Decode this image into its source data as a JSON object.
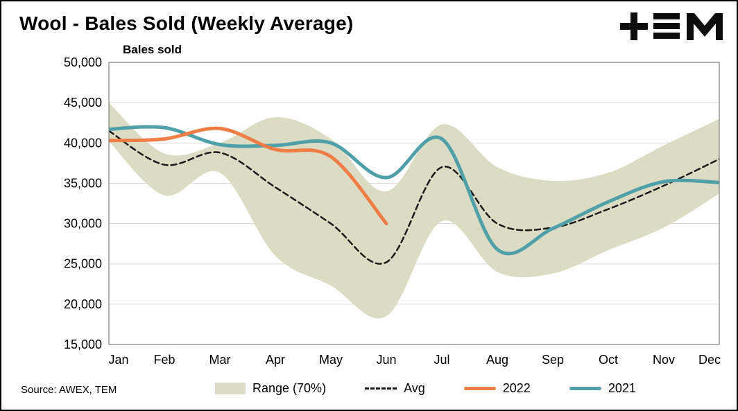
{
  "header": {
    "title": "Wool - Bales Sold (Weekly Average)",
    "logo": "TEM"
  },
  "source": "Source: AWEX, TEM",
  "legend": [
    {
      "label": "Range (70%)",
      "type": "band",
      "color": "#dcdcc5"
    },
    {
      "label": "Avg",
      "type": "dashed",
      "color": "#1a1a1a"
    },
    {
      "label": "2022",
      "type": "line",
      "color": "#ef7d45"
    },
    {
      "label": "2021",
      "type": "line",
      "color": "#4fa0a9"
    }
  ],
  "chart_data": {
    "type": "line",
    "title": "Wool - Bales Sold (Weekly Average)",
    "xlabel": "",
    "ylabel": "Bales sold",
    "x_categories": [
      "Jan",
      "Feb",
      "Mar",
      "Apr",
      "May",
      "Jun",
      "Jul",
      "Aug",
      "Sep",
      "Oct",
      "Nov",
      "Dec"
    ],
    "ylim": [
      15000,
      50000
    ],
    "ytick_step": 5000,
    "ytick_labels": [
      "15,000",
      "20,000",
      "25,000",
      "30,000",
      "35,000",
      "40,000",
      "45,000",
      "50,000"
    ],
    "grid": true,
    "legend_position": "bottom",
    "band": {
      "name": "Range (70%)",
      "color": "#dcdcc5",
      "upper": [
        45000,
        38700,
        40000,
        43200,
        40500,
        34000,
        42300,
        37000,
        35300,
        36300,
        39700,
        43000
      ],
      "lower": [
        40200,
        33500,
        36300,
        26000,
        22300,
        18500,
        30300,
        24000,
        23800,
        26700,
        29500,
        33700
      ]
    },
    "series": [
      {
        "name": "Avg",
        "style": "dashed",
        "color": "#1a1a1a",
        "values": [
          41500,
          37300,
          38800,
          34500,
          30000,
          25200,
          37000,
          30000,
          29500,
          31800,
          34700,
          38000
        ]
      },
      {
        "name": "2021",
        "style": "solid",
        "color": "#4fa0a9",
        "values": [
          41700,
          41900,
          39800,
          39700,
          40000,
          35700,
          40500,
          26800,
          29400,
          32700,
          35200,
          35100
        ]
      },
      {
        "name": "2022",
        "style": "solid",
        "color": "#ef7d45",
        "values": [
          40300,
          40500,
          41800,
          39200,
          38300,
          30000,
          null,
          null,
          null,
          null,
          null,
          null
        ]
      }
    ]
  }
}
